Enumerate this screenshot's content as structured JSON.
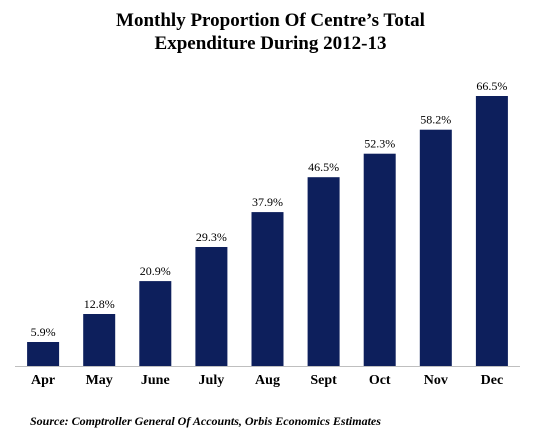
{
  "header": {
    "title_line_1": "Monthly Proportion Of Centre’s Total",
    "title_line_2": "Expenditure During 2012-13"
  },
  "footer": {
    "source": "Source: Comptroller General Of Accounts, Orbis Economics Estimates"
  },
  "chart_data": {
    "type": "bar",
    "title": "Monthly Proportion Of Centre’s Total Expenditure During 2012-13",
    "categories": [
      "Apr",
      "May",
      "June",
      "July",
      "Aug",
      "Sept",
      "Oct",
      "Nov",
      "Dec"
    ],
    "values": [
      5.9,
      12.8,
      20.9,
      29.3,
      37.9,
      46.5,
      52.3,
      58.2,
      66.5
    ],
    "data_labels": [
      "5.9%",
      "12.8%",
      "20.9%",
      "29.3%",
      "37.9%",
      "46.5%",
      "52.3%",
      "58.2%",
      "66.5%"
    ],
    "value_unit": "%",
    "xlabel": "",
    "ylabel": "",
    "ylim": [
      0,
      66.5
    ],
    "grid": false,
    "legend": "none",
    "bar_color": "#0d1f5c",
    "axis_color": "#bfbfbf"
  }
}
